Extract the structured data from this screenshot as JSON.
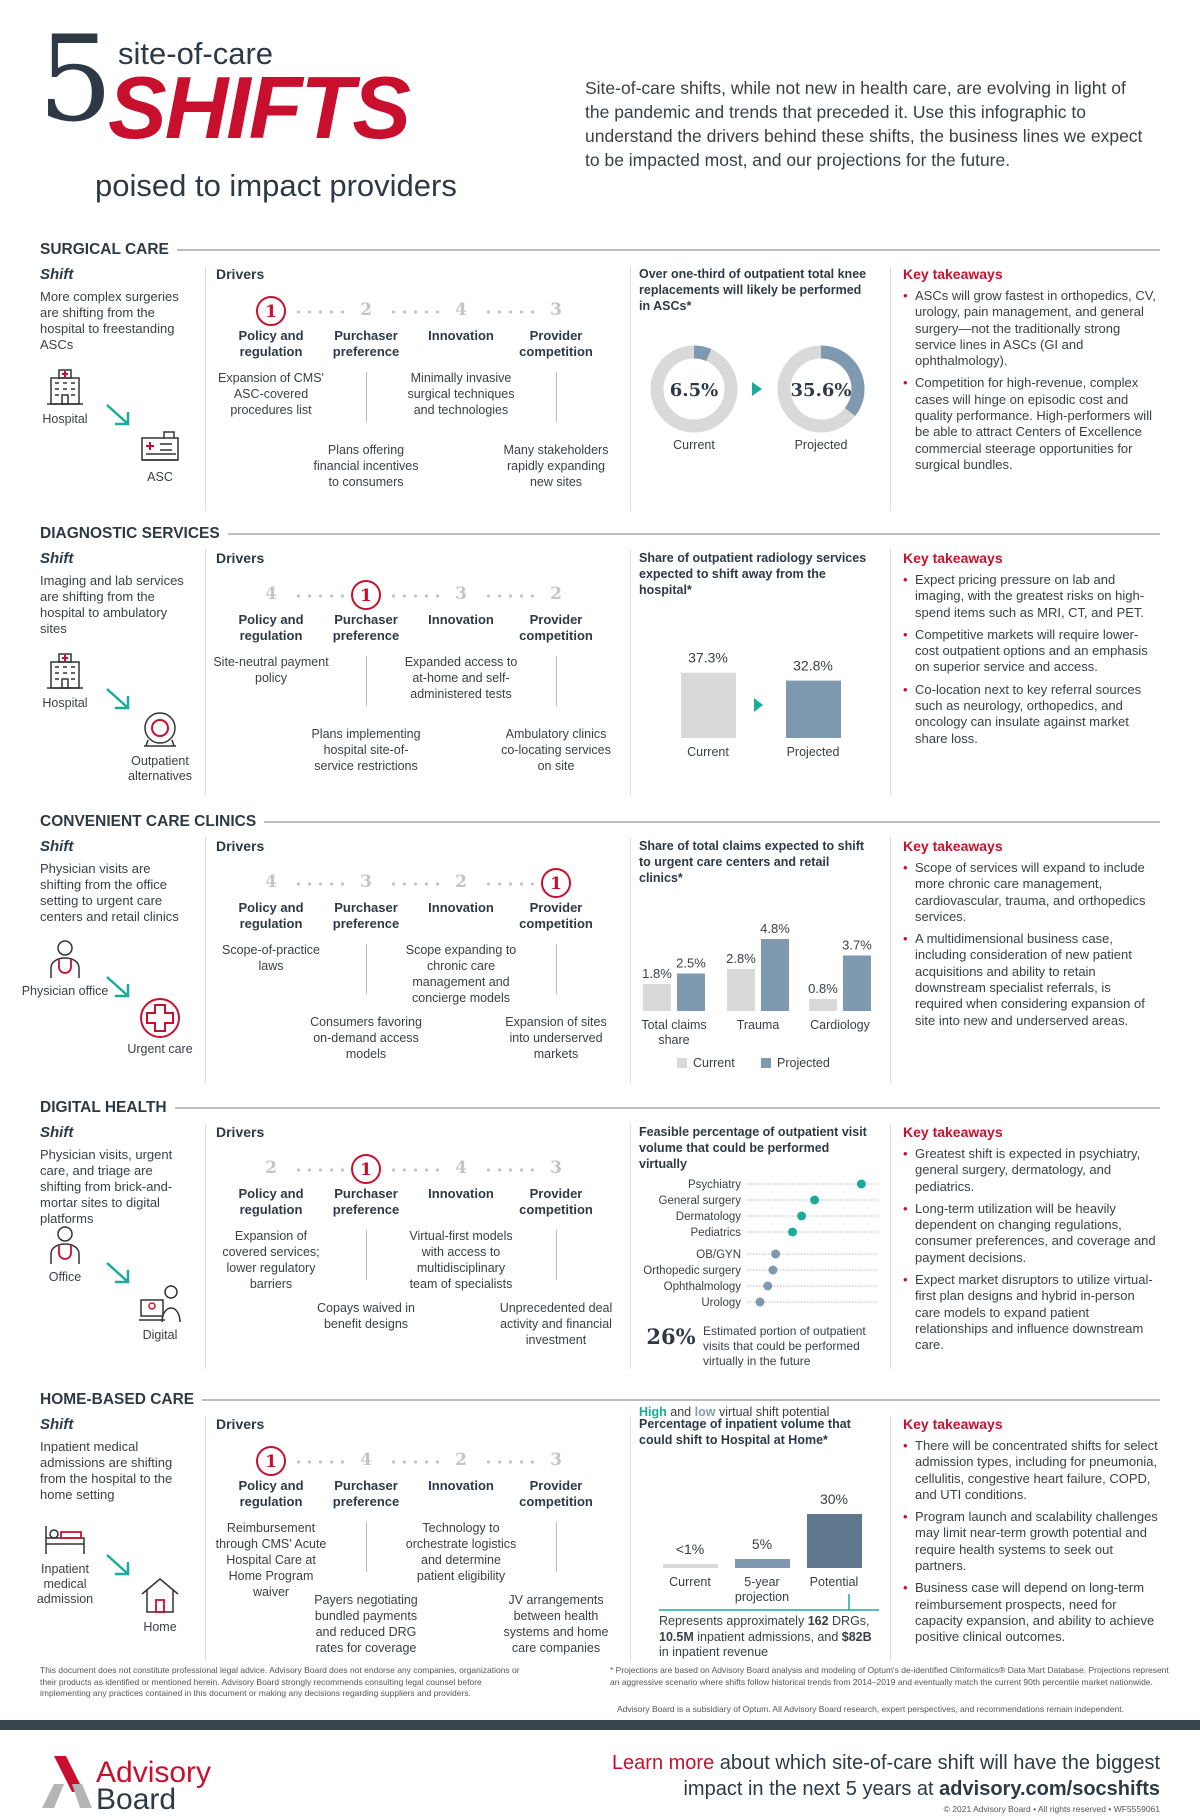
{
  "header": {
    "number": "5",
    "line1": "site-of-care",
    "line2": "SHIFTS",
    "line3": "poised to impact providers",
    "intro": "Site-of-care shifts, while not new in health care, are evolving in light of the pandemic and trends that preceded it. Use this infographic to understand the drivers behind these shifts, the business lines we expect to be impacted most, and our projections for the future."
  },
  "labels": {
    "shift": "Shift",
    "drivers": "Drivers",
    "takeaways": "Key takeaways"
  },
  "driver_labels": [
    "Policy and regulation",
    "Purchaser preference",
    "Innovation",
    "Provider competition"
  ],
  "colors": {
    "red": "#c8102e",
    "teal": "#1aab9b",
    "steel": "#7f99b0",
    "slate": "#5f7890",
    "gray": "#d9d9d9"
  },
  "sections": [
    {
      "title": "SURGICAL CARE",
      "shift": "More complex surgeries are shifting from the hospital to freestanding ASCs",
      "from": {
        "label": "Hospital",
        "icon": "hospital-icon"
      },
      "to": {
        "label": "ASC",
        "icon": "asc-icon"
      },
      "ranks": [
        1,
        2,
        4,
        3
      ],
      "driver_descs": [
        "Expansion of CMS' ASC-covered procedures list",
        "Plans offering financial incentives to consumers",
        "Minimally invasive surgical techniques and technologies",
        "Many stakeholders rapidly expanding new sites"
      ],
      "chart": {
        "type": "donut",
        "title": "Over one-third of outpatient total knee replacements will likely be performed in ASCs*",
        "items": [
          {
            "label": "Current",
            "value": 6.5,
            "text": "6.5%"
          },
          {
            "label": "Projected",
            "value": 35.6,
            "text": "35.6%"
          }
        ]
      },
      "takeaways": [
        "ASCs will grow fastest in orthopedics, CV, urology, pain management, and general surgery—not the traditionally strong service lines in ASCs (GI and ophthalmology).",
        "Competition for high-revenue, complex cases will hinge on episodic cost and quality performance. High-performers will be able to attract Centers of Excellence commercial steerage opportunities for surgical bundles."
      ]
    },
    {
      "title": "DIAGNOSTIC SERVICES",
      "shift": "Imaging and lab services are shifting from the hospital to ambulatory sites",
      "from": {
        "label": "Hospital",
        "icon": "hospital-icon"
      },
      "to": {
        "label": "Outpatient alternatives",
        "icon": "mri-scanner-icon"
      },
      "ranks": [
        4,
        1,
        3,
        2
      ],
      "driver_descs": [
        "Site-neutral payment policy",
        "Plans implementing hospital site-of-service restrictions",
        "Expanded access to at-home and self-administered tests",
        "Ambulatory clinics co-locating services on site"
      ],
      "chart": {
        "type": "bar",
        "title": "Share of outpatient radiology services expected to shift away from the hospital*",
        "items": [
          {
            "label": "Current",
            "value": 37.3,
            "text": "37.3%"
          },
          {
            "label": "Projected",
            "value": 32.8,
            "text": "32.8%"
          }
        ]
      },
      "takeaways": [
        "Expect pricing pressure on lab and imaging, with the greatest risks on high-spend items such as MRI, CT, and PET.",
        "Competitive markets will require lower-cost outpatient options and an emphasis on superior service and access.",
        "Co-location next to key referral sources such as neurology, orthopedics, and oncology can insulate against market share loss."
      ]
    },
    {
      "title": "CONVENIENT CARE CLINICS",
      "shift": "Physician visits are shifting from the office setting to urgent care centers and retail clinics",
      "from": {
        "label": "Physician office",
        "icon": "physician-icon"
      },
      "to": {
        "label": "Urgent care",
        "icon": "urgent-care-cross-icon"
      },
      "ranks": [
        4,
        3,
        2,
        1
      ],
      "driver_descs": [
        "Scope-of-practice laws",
        "Consumers favoring on-demand access models",
        "Scope expanding to chronic care management and concierge models",
        "Expansion of sites into underserved markets"
      ],
      "chart": {
        "type": "grouped-bar",
        "title": "Share of total claims expected to shift to urgent care centers and retail clinics*",
        "series": [
          {
            "name": "Current"
          },
          {
            "name": "Projected"
          }
        ],
        "categories": [
          {
            "label": "Total claims share",
            "values": [
              1.8,
              2.5
            ],
            "texts": [
              "1.8%",
              "2.5%"
            ]
          },
          {
            "label": "Trauma",
            "values": [
              2.8,
              4.8
            ],
            "texts": [
              "2.8%",
              "4.8%"
            ]
          },
          {
            "label": "Cardiology",
            "values": [
              0.8,
              3.7
            ],
            "texts": [
              "0.8%",
              "3.7%"
            ]
          }
        ]
      },
      "takeaways": [
        "Scope of services will expand to include more chronic care management, cardiovascular, trauma, and orthopedics services.",
        "A multidimensional business case, including consideration of new patient acquisitions and ability to retain downstream specialist referrals, is required when considering expansion of site into new and underserved areas."
      ]
    },
    {
      "title": "DIGITAL HEALTH",
      "shift": "Physician visits, urgent care, and triage are shifting from brick-and-mortar sites to digital platforms",
      "from": {
        "label": "Office",
        "icon": "physician-icon"
      },
      "to": {
        "label": "Digital",
        "icon": "telehealth-icon"
      },
      "ranks": [
        2,
        1,
        4,
        3
      ],
      "driver_descs": [
        "Expansion of covered services; lower regulatory barriers",
        "Copays waived in benefit designs",
        "Virtual-first models with access to multidisciplinary team of specialists",
        "Unprecedented deal activity and financial investment"
      ],
      "chart": {
        "type": "dot",
        "title": "Feasible percentage of outpatient visit volume that could be performed virtually",
        "legend": {
          "high": "High",
          "and": "and",
          "low": "low",
          "rest": "virtual shift potential"
        },
        "high": [
          {
            "label": "Psychiatry",
            "value": 0.88
          },
          {
            "label": "General surgery",
            "value": 0.52
          },
          {
            "label": "Dermatology",
            "value": 0.42
          },
          {
            "label": "Pediatrics",
            "value": 0.35
          }
        ],
        "low": [
          {
            "label": "OB/GYN",
            "value": 0.22
          },
          {
            "label": "Orthopedic surgery",
            "value": 0.2
          },
          {
            "label": "Ophthalmology",
            "value": 0.16
          },
          {
            "label": "Urology",
            "value": 0.1
          }
        ],
        "stat": "26%",
        "stat_text": "Estimated portion of outpatient visits that could be performed virtually in the future"
      },
      "takeaways": [
        "Greatest shift is expected in psychiatry, general surgery, dermatology, and pediatrics.",
        "Long-term utilization will be heavily dependent on changing regulations, consumer preferences, and coverage and payment decisions.",
        "Expect market disruptors to utilize virtual-first plan designs and hybrid in-person care models to expand patient relationships and influence downstream care."
      ]
    },
    {
      "title": "HOME-BASED CARE",
      "shift": "Inpatient medical admissions are shifting from the hospital to the home setting",
      "from": {
        "label": "Inpatient medical admission",
        "icon": "hospital-bed-icon"
      },
      "to": {
        "label": "Home",
        "icon": "home-icon"
      },
      "ranks": [
        1,
        4,
        2,
        3
      ],
      "driver_descs": [
        "Reimbursement through CMS' Acute Hospital Care at Home Program waiver",
        "Payers negotiating bundled payments and reduced DRG rates for coverage",
        "Technology to orchestrate logistics and determine patient eligibility",
        "JV arrangements between health systems and home care companies"
      ],
      "chart": {
        "type": "home-bar",
        "title": "Percentage of inpatient volume that could shift to Hospital at Home*",
        "items": [
          {
            "label": "Current",
            "value": 0.5,
            "text": "<1%"
          },
          {
            "label": "5-year projection",
            "value": 5,
            "text": "5%"
          },
          {
            "label": "Potential",
            "value": 30,
            "text": "30%"
          }
        ],
        "note": [
          "Represents approximately ",
          "162",
          " DRGs, ",
          "10.5M",
          " inpatient admissions, and ",
          "$82B",
          " in inpatient revenue"
        ]
      },
      "takeaways": [
        "There will be concentrated shifts for select admission types, including for pneumonia, cellulitis, congestive heart failure, COPD, and UTI conditions.",
        "Program launch and scalability challenges may limit near-term growth potential and require health systems to seek out partners.",
        "Business case will depend on long-term reimbursement prospects, need for capacity expansion, and ability to achieve positive clinical outcomes."
      ]
    }
  ],
  "footer": {
    "disclaimer": "This document does not constitute professional legal advice. Advisory Board does not endorse any companies, organizations or their products as identified or mentioned herein. Advisory Board strongly recommends consulting legal counsel before implementing any practices contained in this document or making any decisions regarding suppliers and providers.",
    "footnote": "* Projections are based on Advisory Board analysis and modeling of Optum's de-identified Clinformatics® Data Mart Database. Projections represent an aggressive scenario where shifts follow historical trends from 2014–2019 and eventually match the current 90th percentile market nationwide.",
    "subsidiary": "Advisory Board is a subsidiary of Optum. All Advisory Board research, expert perspectives, and recommendations remain independent.",
    "logo": "Advisory Board",
    "cta_red": "Learn more",
    "cta_1": " about which site-of-care shift will have the biggest",
    "cta_2": "impact in the next 5 years at ",
    "cta_link": "advisory.com/socshifts",
    "copyright": "© 2021 Advisory Board • All rights reserved • WF5559061"
  }
}
